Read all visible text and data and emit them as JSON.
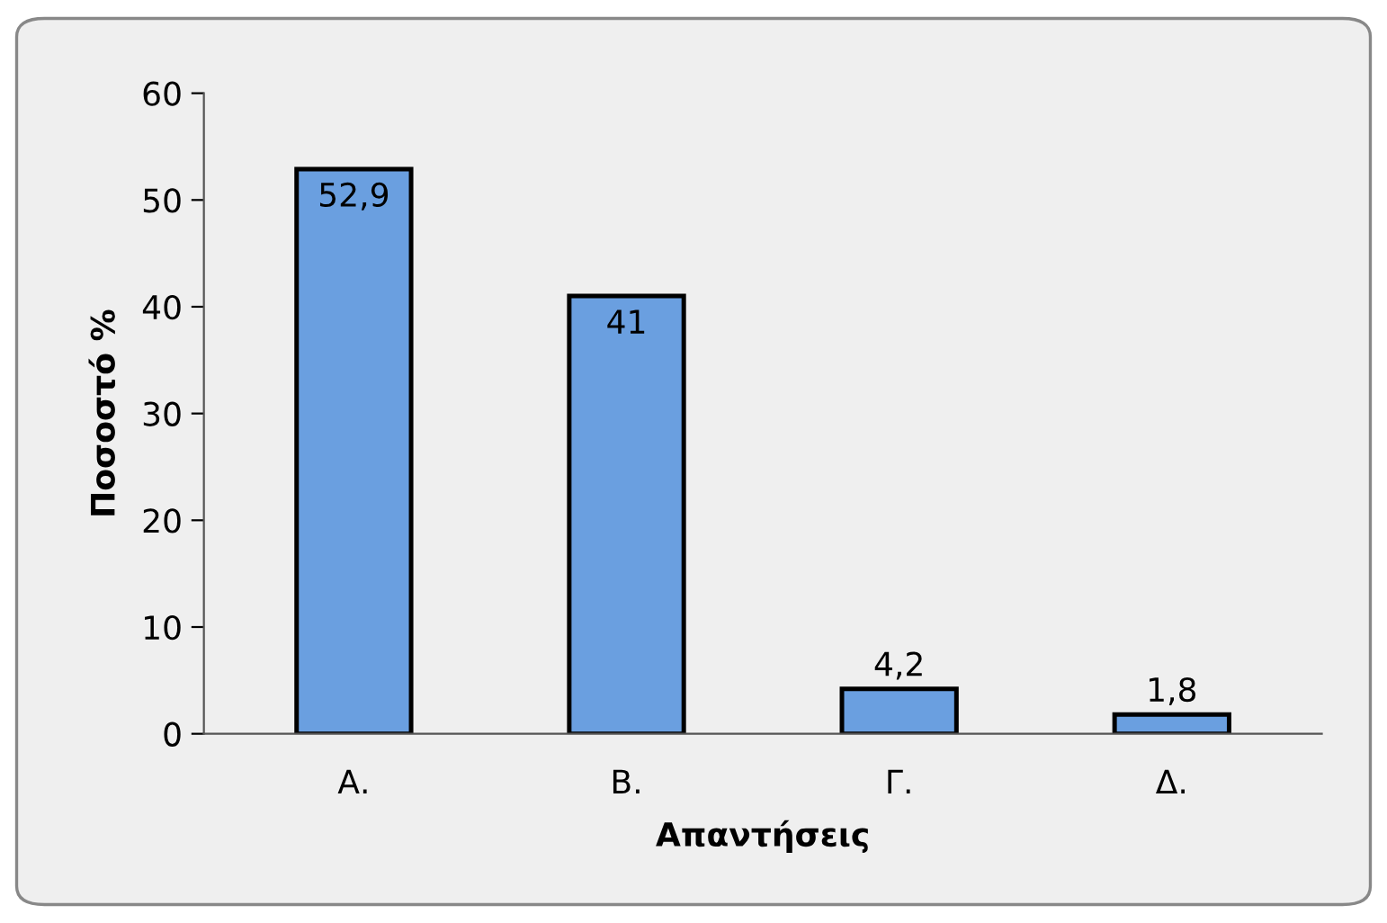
{
  "chart_data": {
    "type": "bar",
    "xlabel": "Απαντήσεις",
    "ylabel": "Ποσοστό %",
    "categories": [
      "Α.",
      "Β.",
      "Γ.",
      "Δ."
    ],
    "values": [
      52.9,
      41,
      4.2,
      1.8
    ],
    "value_labels": [
      "52,9",
      "41",
      "4,2",
      "1,8"
    ],
    "color": "#6a9fe0",
    "ylim": [
      0,
      60
    ],
    "yticks": [
      0,
      10,
      20,
      30,
      40,
      50,
      60
    ],
    "grid": false,
    "legend": false
  }
}
